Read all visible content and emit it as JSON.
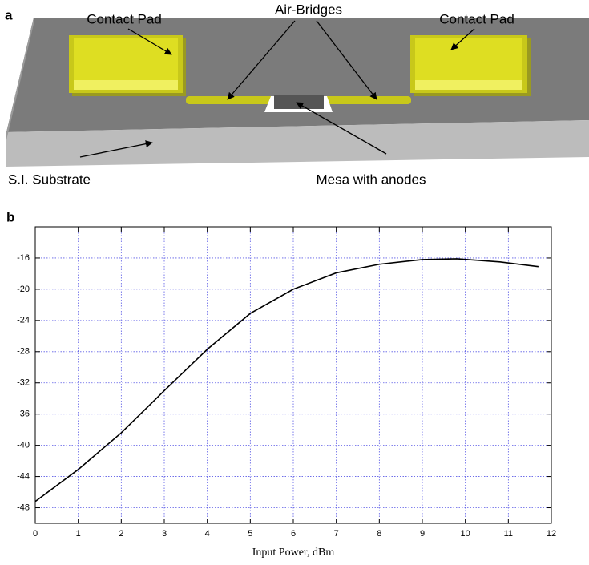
{
  "figure_a": {
    "label": "a",
    "left_pad": "Contact Pad",
    "bridges": "Air-Bridges",
    "right_pad": "Contact Pad",
    "substrate": "S.I. Substrate",
    "mesa": "Mesa with anodes"
  },
  "chart_data": {
    "type": "line",
    "panel_label": "b",
    "xlabel": "Input Power, dBm",
    "x": [
      0,
      1,
      2,
      3,
      4,
      5,
      6,
      7,
      8,
      9,
      9.8,
      10.8,
      11.7
    ],
    "values": [
      -47.2,
      -43.1,
      -38.4,
      -33.0,
      -27.7,
      -23.1,
      -20.0,
      -17.9,
      -16.8,
      -16.2,
      -16.1,
      -16.5,
      -17.1
    ],
    "color": "#000000",
    "xlim": [
      0,
      12
    ],
    "xticks": [
      0,
      1,
      2,
      3,
      4,
      5,
      6,
      7,
      8,
      9,
      10,
      11,
      12
    ],
    "ylim": [
      -50,
      -12
    ],
    "yticks": [
      -48,
      -44,
      -40,
      -36,
      -32,
      -28,
      -24,
      -20,
      -16
    ],
    "grid": true,
    "grid_color": "#5a5ae6"
  }
}
